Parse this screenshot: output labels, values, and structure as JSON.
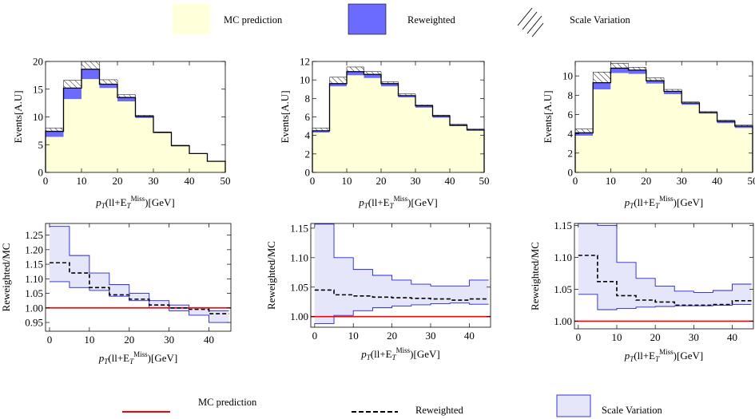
{
  "legend_top": [
    {
      "label": "MC prediction",
      "swatch": "mc-fill",
      "color": "#ffffd9"
    },
    {
      "label": "Reweighted",
      "swatch": "rw-fill",
      "color": "#6b6bff"
    },
    {
      "label": "Scale Variation",
      "swatch": "hatch"
    }
  ],
  "legend_bottom": [
    {
      "label": "MC prediction",
      "swatch": "red-line",
      "color": "#ff0000"
    },
    {
      "label": "Reweighted",
      "swatch": "dashed-line",
      "color": "#000000"
    },
    {
      "label": "Scale Variation",
      "swatch": "blue-box",
      "color": "#e6e6fa"
    }
  ],
  "axis_text": {
    "x_base": "p",
    "x_sub": "T",
    "x_mid": "(ll+E",
    "x_sub2": "T",
    "x_sup": "Miss",
    "x_tail": ")[GeV]",
    "y_top": "Events[A.U]",
    "y_bottom": "Reweighted/MC"
  },
  "chart_data": [
    {
      "type": "histogram",
      "panel": "top-left",
      "xlim": [
        0,
        50
      ],
      "ylim": [
        0,
        20
      ],
      "xticks": [
        0,
        10,
        20,
        30,
        40,
        50
      ],
      "yticks": [
        0,
        5,
        10,
        15,
        20
      ],
      "bin_edges": [
        0,
        5,
        10,
        15,
        20,
        25,
        30,
        35,
        40,
        45,
        50
      ],
      "series": [
        {
          "name": "MC prediction",
          "values": [
            6.4,
            13.2,
            16.8,
            15.2,
            12.8,
            9.8,
            7.2,
            4.8,
            3.4,
            2.0
          ]
        },
        {
          "name": "Reweighted",
          "values": [
            7.4,
            15.2,
            18.6,
            15.9,
            13.5,
            10.1,
            7.2,
            4.8,
            3.4,
            2.0
          ]
        },
        {
          "name": "Scale Variation",
          "values": [
            8.0,
            16.6,
            20.0,
            16.7,
            14.0,
            10.3,
            7.3,
            4.9,
            3.4,
            2.0
          ]
        }
      ]
    },
    {
      "type": "histogram",
      "panel": "top-middle",
      "xlim": [
        0,
        50
      ],
      "ylim": [
        0,
        12
      ],
      "xticks": [
        0,
        10,
        20,
        30,
        40,
        50
      ],
      "yticks": [
        0,
        2,
        4,
        6,
        8,
        10,
        12
      ],
      "bin_edges": [
        0,
        5,
        10,
        15,
        20,
        25,
        30,
        35,
        40,
        45,
        50
      ],
      "series": [
        {
          "name": "MC prediction",
          "values": [
            4.3,
            9.3,
            10.5,
            10.2,
            9.3,
            8.1,
            7.0,
            5.9,
            5.0,
            4.5
          ]
        },
        {
          "name": "Reweighted",
          "values": [
            4.5,
            9.6,
            10.9,
            10.6,
            9.6,
            8.3,
            7.2,
            6.1,
            5.1,
            4.6
          ]
        },
        {
          "name": "Scale Variation",
          "values": [
            4.8,
            10.3,
            11.4,
            10.9,
            9.8,
            8.5,
            7.3,
            6.2,
            5.2,
            4.7
          ]
        }
      ]
    },
    {
      "type": "histogram",
      "panel": "top-right",
      "xlim": [
        0,
        50
      ],
      "ylim": [
        0,
        11.5
      ],
      "xticks": [
        0,
        10,
        20,
        30,
        40,
        50
      ],
      "yticks": [
        0,
        2,
        4,
        6,
        8,
        10
      ],
      "bin_edges": [
        0,
        5,
        10,
        15,
        20,
        25,
        30,
        35,
        40,
        45,
        50
      ],
      "series": [
        {
          "name": "MC prediction",
          "values": [
            3.8,
            8.6,
            10.3,
            10.2,
            9.2,
            8.1,
            7.0,
            6.1,
            5.1,
            4.6
          ]
        },
        {
          "name": "Reweighted",
          "values": [
            4.1,
            9.3,
            10.8,
            10.6,
            9.5,
            8.4,
            7.2,
            6.2,
            5.3,
            4.8
          ]
        },
        {
          "name": "Scale Variation",
          "values": [
            4.5,
            10.4,
            11.3,
            10.9,
            9.8,
            8.6,
            7.3,
            6.3,
            5.4,
            4.9
          ]
        }
      ]
    },
    {
      "type": "ratio",
      "panel": "bottom-left",
      "xlim": [
        -1,
        45.5
      ],
      "ylim": [
        0.92,
        1.29
      ],
      "xticks": [
        0,
        10,
        20,
        30,
        40
      ],
      "yticks": [
        0.95,
        1.0,
        1.05,
        1.1,
        1.15,
        1.2,
        1.25
      ],
      "bin_edges": [
        0,
        5,
        10,
        15,
        20,
        25,
        30,
        35,
        40,
        45
      ],
      "series": [
        {
          "name": "MC prediction",
          "values": [
            1.0,
            1.0,
            1.0,
            1.0,
            1.0,
            1.0,
            1.0,
            1.0,
            1.0
          ]
        },
        {
          "name": "Reweighted",
          "values": [
            1.155,
            1.12,
            1.07,
            1.045,
            1.03,
            1.01,
            1.0,
            0.995,
            0.98
          ]
        },
        {
          "name": "scale-upper",
          "values": [
            1.28,
            1.18,
            1.12,
            1.08,
            1.05,
            1.025,
            1.01,
            1.0,
            0.99
          ]
        },
        {
          "name": "scale-lower",
          "values": [
            1.09,
            1.07,
            1.06,
            1.04,
            1.025,
            1.0,
            0.99,
            0.975,
            0.95
          ]
        }
      ]
    },
    {
      "type": "ratio",
      "panel": "bottom-middle",
      "xlim": [
        -1,
        45.5
      ],
      "ylim": [
        0.982,
        1.158
      ],
      "xticks": [
        0,
        10,
        20,
        30,
        40
      ],
      "yticks": [
        1.0,
        1.05,
        1.1,
        1.15
      ],
      "bin_edges": [
        0,
        5,
        10,
        15,
        20,
        25,
        30,
        35,
        40,
        45
      ],
      "series": [
        {
          "name": "MC prediction",
          "values": [
            1.0,
            1.0,
            1.0,
            1.0,
            1.0,
            1.0,
            1.0,
            1.0,
            1.0
          ]
        },
        {
          "name": "Reweighted",
          "values": [
            1.045,
            1.037,
            1.035,
            1.033,
            1.032,
            1.031,
            1.03,
            1.028,
            1.03
          ]
        },
        {
          "name": "scale-upper",
          "values": [
            1.157,
            1.1,
            1.08,
            1.07,
            1.062,
            1.055,
            1.052,
            1.052,
            1.062
          ]
        },
        {
          "name": "scale-lower",
          "values": [
            0.988,
            1.002,
            1.01,
            1.015,
            1.018,
            1.02,
            1.022,
            1.023,
            1.021
          ]
        }
      ]
    },
    {
      "type": "ratio",
      "panel": "bottom-right",
      "xlim": [
        -1,
        45.5
      ],
      "ylim": [
        0.988,
        1.153
      ],
      "xticks": [
        0,
        10,
        20,
        30,
        40
      ],
      "yticks": [
        1.0,
        1.05,
        1.1,
        1.15
      ],
      "bin_edges": [
        0,
        5,
        10,
        15,
        20,
        25,
        30,
        35,
        40,
        45
      ],
      "series": [
        {
          "name": "MC prediction",
          "values": [
            1.0,
            1.0,
            1.0,
            1.0,
            1.0,
            1.0,
            1.0,
            1.0,
            1.0
          ]
        },
        {
          "name": "Reweighted",
          "values": [
            1.103,
            1.062,
            1.04,
            1.033,
            1.03,
            1.025,
            1.025,
            1.026,
            1.032
          ]
        },
        {
          "name": "scale-upper",
          "values": [
            1.153,
            1.15,
            1.092,
            1.067,
            1.055,
            1.047,
            1.045,
            1.048,
            1.058
          ]
        },
        {
          "name": "scale-lower",
          "values": [
            1.042,
            1.018,
            1.02,
            1.022,
            1.023,
            1.024,
            1.024,
            1.025,
            1.026
          ]
        }
      ]
    }
  ]
}
